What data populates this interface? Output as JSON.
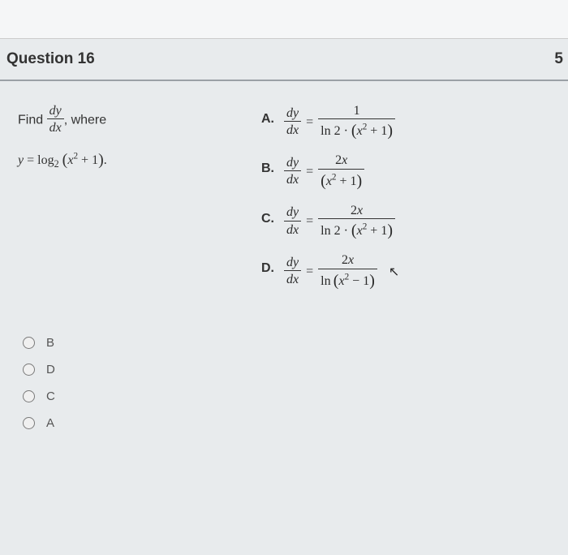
{
  "header": {
    "title": "Question 16",
    "points": "5"
  },
  "prompt": {
    "find_label": "Find",
    "where_label": ", where",
    "dydx_num": "dy",
    "dydx_den": "dx",
    "equation_y": "y",
    "equals": " = ",
    "log_text": "log",
    "log_base": "2",
    "inner_x2": "x",
    "inner_sup": "2",
    "inner_plus1": " + 1",
    "period": "."
  },
  "answers": {
    "A": {
      "label": "A.",
      "lhs_num": "dy",
      "lhs_den": "dx",
      "eq": "=",
      "rhs_num": "1",
      "rhs_den_ln": "ln 2 ·",
      "rhs_den_x": "x",
      "rhs_den_sup": "2",
      "rhs_den_plus1": " + 1"
    },
    "B": {
      "label": "B.",
      "lhs_num": "dy",
      "lhs_den": "dx",
      "eq": "=",
      "rhs_num_coef": "2",
      "rhs_num_x": "x",
      "rhs_den_x": "x",
      "rhs_den_sup": "2",
      "rhs_den_plus1": " + 1"
    },
    "C": {
      "label": "C.",
      "lhs_num": "dy",
      "lhs_den": "dx",
      "eq": "=",
      "rhs_num_coef": "2",
      "rhs_num_x": "x",
      "rhs_den_ln": "ln 2 ·",
      "rhs_den_x": "x",
      "rhs_den_sup": "2",
      "rhs_den_plus1": " + 1"
    },
    "D": {
      "label": "D.",
      "lhs_num": "dy",
      "lhs_den": "dx",
      "eq": "=",
      "rhs_num_coef": "2",
      "rhs_num_x": "x",
      "rhs_den_ln": "ln",
      "rhs_den_x": "x",
      "rhs_den_sup": "2",
      "rhs_den_minus1": " − 1"
    }
  },
  "options": [
    {
      "letter": "B"
    },
    {
      "letter": "D"
    },
    {
      "letter": "C"
    },
    {
      "letter": "A"
    }
  ],
  "colors": {
    "background": "#e8ebed",
    "header_border": "#9aa0a6",
    "text": "#333333",
    "radio_border": "#7a7a7a"
  }
}
